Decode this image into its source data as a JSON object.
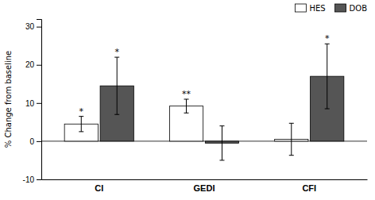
{
  "chart_data": {
    "type": "bar",
    "categories": [
      "CI",
      "GEDI",
      "CFI"
    ],
    "series": [
      {
        "name": "HES",
        "color": "#ffffff",
        "values": [
          4.5,
          9.2,
          0.5
        ],
        "errors": [
          2.0,
          1.8,
          4.2
        ],
        "annotations": [
          "*",
          "**",
          null
        ]
      },
      {
        "name": "DOB",
        "color": "#555555",
        "values": [
          14.5,
          -0.5,
          17.0
        ],
        "errors": [
          7.5,
          4.5,
          8.5
        ],
        "annotations": [
          "*",
          null,
          "*"
        ]
      }
    ],
    "ylabel": "% Change from baseline",
    "ylim": [
      -10,
      32
    ],
    "yticks": [
      -10,
      0,
      10,
      20,
      30
    ],
    "legend": "upper right",
    "grid": false
  }
}
